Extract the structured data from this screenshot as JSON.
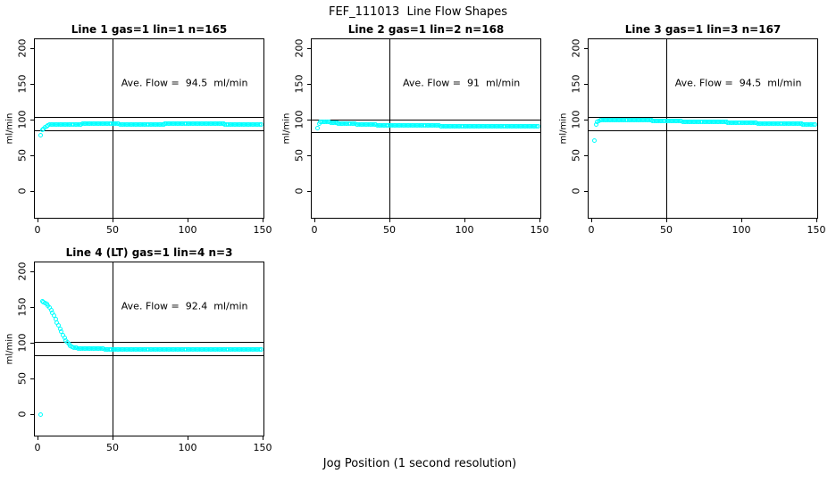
{
  "figure": {
    "title": "FEF_111013  Line Flow Shapes",
    "xlabel": "Jog Position (1 second resolution)",
    "ylabel": "ml/min",
    "point_color": "#00ffff",
    "axis_color": "#000000",
    "background_color": "#ffffff"
  },
  "chart_data": [
    {
      "type": "scatter",
      "title": "Line 1 gas=1 lin=1 n=165",
      "n": 165,
      "ave_flow": 94.5,
      "annotation": "Ave. Flow =  94.5  ml/min",
      "x_ticks": [
        0,
        50,
        100,
        150
      ],
      "y_ticks": [
        0,
        50,
        100,
        150,
        200
      ],
      "xlim": [
        -2.4,
        151.2
      ],
      "ylim": [
        -39,
        214
      ],
      "ref_lines": {
        "horizontal": [
          104,
          85
        ],
        "vertical": [
          50
        ]
      },
      "annotation_at": {
        "x": 98,
        "y": 151
      },
      "series": {
        "x_start": 2,
        "x_step": 1,
        "y_rle": [
          [
            78,
            1
          ],
          [
            85,
            1
          ],
          [
            87.5,
            1
          ],
          [
            89.5,
            1
          ],
          [
            91,
            1
          ],
          [
            92,
            1
          ],
          [
            92.7,
            1
          ],
          [
            93.2,
            1
          ],
          [
            93.6,
            20
          ],
          [
            94,
            25
          ],
          [
            93.7,
            30
          ],
          [
            94,
            40
          ],
          [
            93.6,
            25
          ]
        ]
      }
    },
    {
      "type": "scatter",
      "title": "Line 2 gas=1 lin=2 n=168",
      "n": 168,
      "ave_flow": 91,
      "annotation": "Ave. Flow =  91  ml/min",
      "x_ticks": [
        0,
        50,
        100,
        150
      ],
      "y_ticks": [
        0,
        50,
        100,
        150,
        200
      ],
      "xlim": [
        -2.4,
        151.2
      ],
      "ylim": [
        -39,
        214
      ],
      "ref_lines": {
        "horizontal": [
          100,
          82
        ],
        "vertical": [
          50
        ]
      },
      "annotation_at": {
        "x": 98,
        "y": 151
      },
      "series": {
        "x_start": 2,
        "x_step": 1,
        "y_rle": [
          [
            88,
            1
          ],
          [
            94.5,
            1
          ],
          [
            96.5,
            1
          ],
          [
            97,
            2
          ],
          [
            96.8,
            2
          ],
          [
            96.4,
            2
          ],
          [
            96,
            2
          ],
          [
            95.5,
            3
          ],
          [
            95,
            3
          ],
          [
            94.5,
            4
          ],
          [
            94,
            5
          ],
          [
            93.5,
            6
          ],
          [
            93,
            8
          ],
          [
            92.5,
            10
          ],
          [
            92,
            14
          ],
          [
            91.5,
            18
          ],
          [
            91,
            30
          ],
          [
            90.7,
            36
          ]
        ]
      }
    },
    {
      "type": "scatter",
      "title": "Line 3 gas=1 lin=3 n=167",
      "n": 167,
      "ave_flow": 94.5,
      "annotation": "Ave. Flow =  94.5  ml/min",
      "x_ticks": [
        0,
        50,
        100,
        150
      ],
      "y_ticks": [
        0,
        50,
        100,
        150,
        200
      ],
      "xlim": [
        -2.4,
        151.2
      ],
      "ylim": [
        -39,
        214
      ],
      "ref_lines": {
        "horizontal": [
          104,
          85
        ],
        "vertical": [
          50
        ]
      },
      "annotation_at": {
        "x": 98,
        "y": 151
      },
      "series": {
        "x_start": 2,
        "x_step": 1,
        "y_rle": [
          [
            70,
            1
          ],
          [
            93,
            1
          ],
          [
            96.5,
            1
          ],
          [
            98.5,
            1
          ],
          [
            99.5,
            3
          ],
          [
            100,
            10
          ],
          [
            99.5,
            11
          ],
          [
            99,
            11
          ],
          [
            98.5,
            10
          ],
          [
            98,
            10
          ],
          [
            97.5,
            10
          ],
          [
            97,
            10
          ],
          [
            96.5,
            10
          ],
          [
            96,
            10
          ],
          [
            95.5,
            10
          ],
          [
            95,
            10
          ],
          [
            94.5,
            10
          ],
          [
            94,
            10
          ],
          [
            93.5,
            9
          ]
        ]
      }
    },
    {
      "type": "scatter",
      "title": "Line 4 (LT) gas=1 lin=4 n=3",
      "n": 3,
      "ave_flow": 92.4,
      "annotation": "Ave. Flow =  92.4  ml/min",
      "x_ticks": [
        0,
        50,
        100,
        150
      ],
      "y_ticks": [
        0,
        50,
        100,
        150,
        200
      ],
      "xlim": [
        -2.4,
        151.2
      ],
      "ylim": [
        -31,
        214
      ],
      "ref_lines": {
        "horizontal": [
          102,
          83
        ],
        "vertical": [
          50
        ]
      },
      "annotation_at": {
        "x": 98,
        "y": 151
      },
      "series": {
        "x_start": 2,
        "x_step": 1,
        "y_rle": [
          [
            0,
            1
          ],
          [
            158,
            1
          ],
          [
            157.5,
            1
          ],
          [
            156.5,
            1
          ],
          [
            155,
            1
          ],
          [
            152.5,
            1
          ],
          [
            149.5,
            1
          ],
          [
            146,
            1
          ],
          [
            142,
            1
          ],
          [
            138,
            1
          ],
          [
            133.5,
            1
          ],
          [
            129,
            1
          ],
          [
            124.5,
            1
          ],
          [
            120,
            1
          ],
          [
            115.5,
            1
          ],
          [
            111.5,
            1
          ],
          [
            107.5,
            1
          ],
          [
            104,
            1
          ],
          [
            101,
            1
          ],
          [
            98.5,
            1
          ],
          [
            96.5,
            1
          ],
          [
            95,
            1
          ],
          [
            94,
            1
          ],
          [
            93.2,
            2
          ],
          [
            92.6,
            3
          ],
          [
            92.1,
            5
          ],
          [
            91.7,
            10
          ],
          [
            91.4,
            25
          ],
          [
            91.2,
            80
          ]
        ]
      }
    }
  ]
}
